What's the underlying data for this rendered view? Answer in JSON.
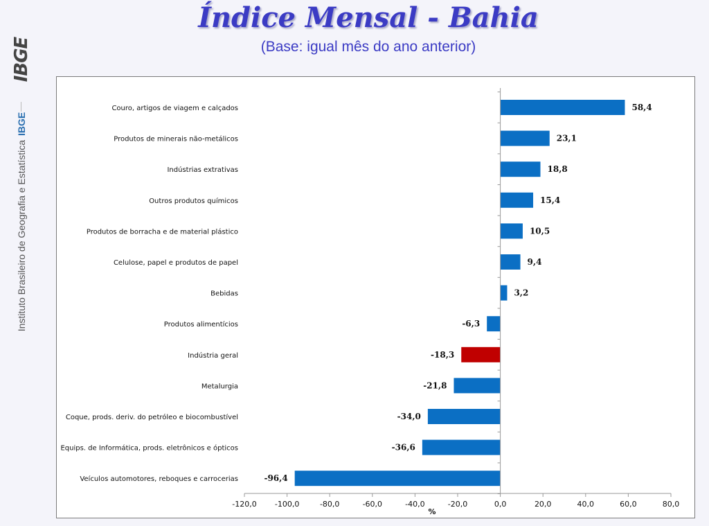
{
  "header": {
    "title": "Índice Mensal - Bahia",
    "subtitle": "(Base: igual mês do ano anterior)"
  },
  "sidebar": {
    "logo_text": "IBGE",
    "institute_name": "Instituto Brasileiro de Geografia e Estatística",
    "institute_acronym": "IBGE"
  },
  "colors": {
    "bar_default": "#0b6fc4",
    "bar_highlight": "#c00000",
    "title": "#3b3bc4"
  },
  "chart_data": {
    "type": "bar",
    "orientation": "horizontal",
    "categories": [
      "Couro, artigos de viagem e calçados",
      "Produtos de minerais não-metálicos",
      "Indústrias extrativas",
      "Outros produtos químicos",
      "Produtos de borracha e de material plástico",
      "Celulose, papel e produtos de papel",
      "Bebidas",
      "Produtos alimentícios",
      "Indústria geral",
      "Metalurgia",
      "Coque, prods. deriv. do petróleo e biocombustível",
      "Equips. de Informática, prods. eletrônicos e ópticos",
      "Veículos automotores, reboques e carrocerias"
    ],
    "values": [
      58.4,
      23.1,
      18.8,
      15.4,
      10.5,
      9.4,
      3.2,
      -6.3,
      -18.3,
      -21.8,
      -34.0,
      -36.6,
      -96.4
    ],
    "value_labels": [
      "58,4",
      "23,1",
      "18,8",
      "15,4",
      "10,5",
      "9,4",
      "3,2",
      "-6,3",
      "-18,3",
      "-21,8",
      "-34,0",
      "-36,6",
      "-96,4"
    ],
    "highlight_category": "Indústria geral",
    "xlim": [
      -120,
      80
    ],
    "xticks": [
      -120,
      -100,
      -80,
      -60,
      -40,
      -20,
      0,
      20,
      40,
      60,
      80
    ],
    "xtick_labels": [
      "-120,0",
      "-100,0",
      "-80,0",
      "-60,0",
      "-40,0",
      "-20,0",
      "0,0",
      "20,0",
      "40,0",
      "60,0",
      "80,0"
    ],
    "xlabel": "%",
    "grid": false,
    "legend": "none"
  }
}
